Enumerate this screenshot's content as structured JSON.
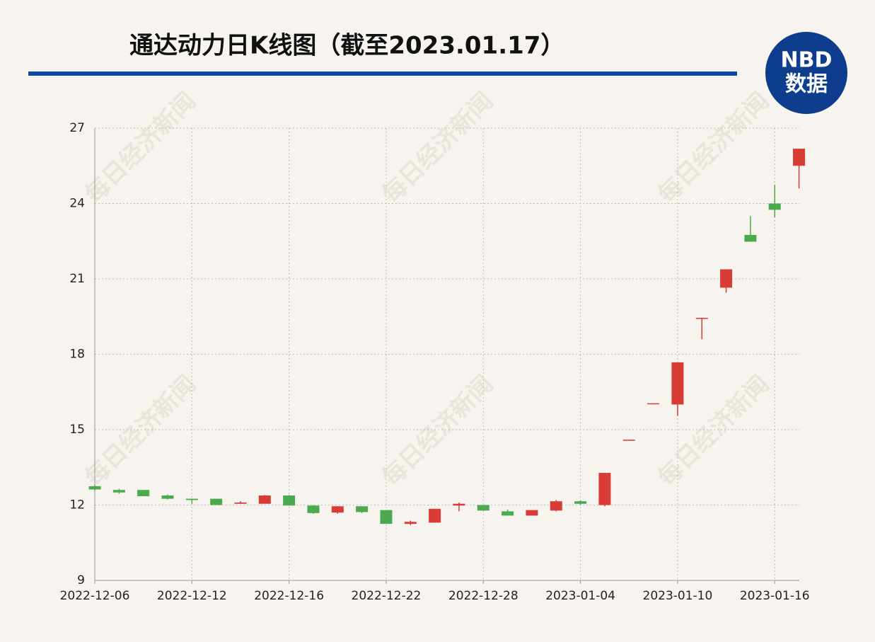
{
  "chart_data": {
    "type": "candlestick",
    "title": "通达动力日K线图（截至2023.01.17）",
    "logo": {
      "top": "NBD",
      "bottom": "数据"
    },
    "watermark": "每日经济新闻",
    "categories": [
      "2022-12-06",
      null,
      null,
      null,
      "2022-12-12",
      null,
      null,
      null,
      "2022-12-16",
      null,
      null,
      null,
      "2022-12-22",
      null,
      null,
      null,
      "2022-12-28",
      null,
      null,
      null,
      "2023-01-04",
      null,
      null,
      null,
      "2023-01-10",
      null,
      null,
      null,
      "2023-01-16",
      null
    ],
    "open": [
      12.75,
      12.6,
      12.6,
      12.38,
      12.25,
      12.25,
      12.05,
      12.05,
      12.38,
      11.98,
      11.7,
      11.95,
      11.8,
      11.25,
      11.3,
      11.98,
      12.0,
      11.75,
      11.58,
      11.78,
      12.15,
      12.0,
      14.58,
      16.03,
      16.0,
      19.43,
      20.65,
      22.75,
      24.0,
      25.5
    ],
    "high": [
      12.8,
      12.65,
      12.6,
      12.42,
      12.25,
      12.25,
      12.15,
      12.4,
      12.4,
      12.0,
      11.95,
      11.95,
      11.8,
      11.38,
      11.85,
      12.1,
      12.0,
      11.82,
      11.8,
      12.2,
      12.18,
      13.28,
      14.6,
      16.05,
      17.68,
      19.45,
      21.38,
      23.5,
      24.75,
      26.18
    ],
    "low": [
      12.58,
      12.45,
      12.35,
      12.22,
      12.05,
      12.0,
      12.05,
      12.05,
      11.98,
      11.65,
      11.65,
      11.68,
      11.25,
      11.2,
      11.3,
      11.75,
      11.78,
      11.58,
      11.58,
      11.75,
      12.0,
      11.95,
      14.58,
      16.03,
      15.55,
      18.6,
      20.45,
      22.48,
      23.45,
      24.6
    ],
    "close": [
      12.62,
      12.5,
      12.35,
      12.25,
      12.2,
      12.0,
      12.1,
      12.38,
      11.98,
      11.68,
      11.95,
      11.72,
      11.25,
      11.33,
      11.85,
      12.05,
      11.78,
      11.58,
      11.8,
      12.15,
      12.05,
      13.28,
      14.6,
      16.05,
      17.68,
      19.45,
      21.38,
      22.48,
      23.75,
      26.18
    ],
    "up_color": "#d93b35",
    "down_color": "#4caa4e",
    "ylim": [
      9,
      27
    ],
    "yticks": [
      9,
      12,
      15,
      18,
      21,
      24,
      27
    ],
    "grid": true
  }
}
